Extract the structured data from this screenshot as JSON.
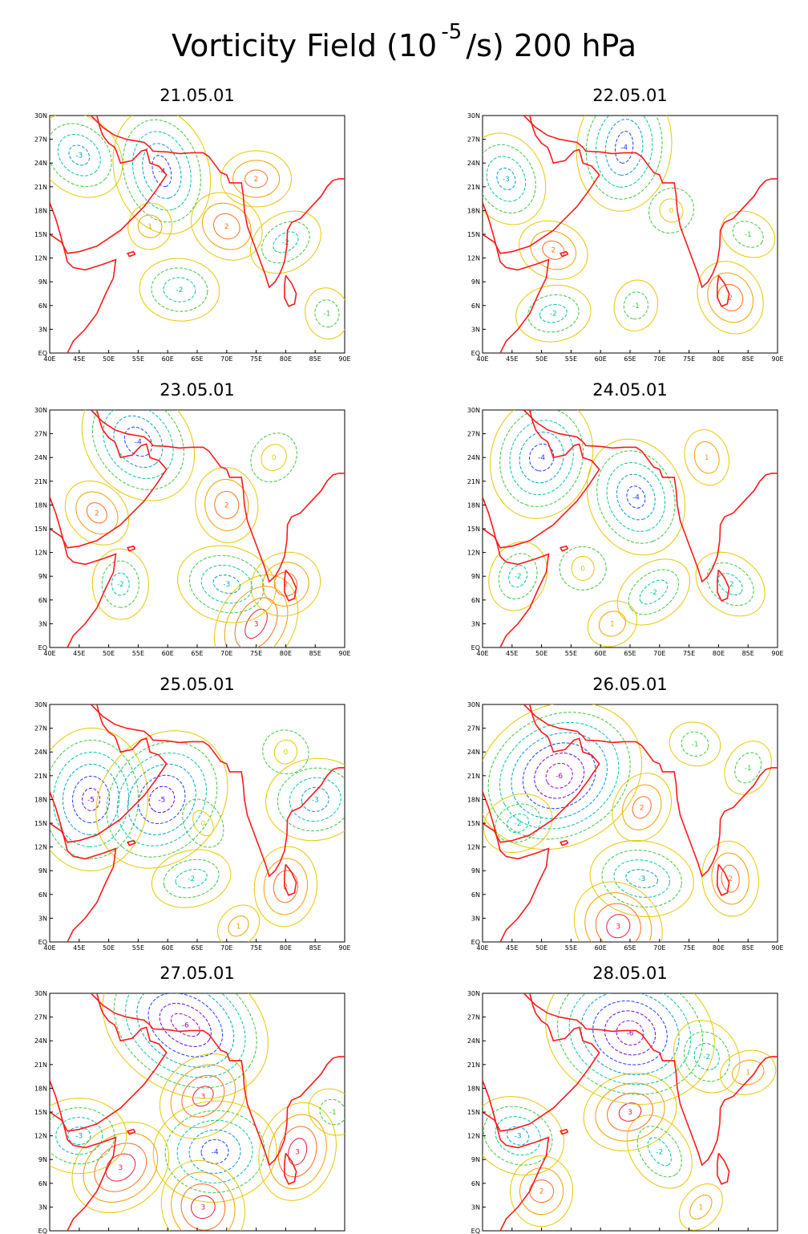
{
  "title": {
    "prefix": "Vorticity  Field (10",
    "exponent": "-5",
    "suffix": "/s) 200 hPa"
  },
  "axes": {
    "lon_range": [
      40,
      90
    ],
    "lat_range": [
      0,
      30
    ],
    "x_ticks": [
      {
        "value": 40,
        "label": "40E"
      },
      {
        "value": 45,
        "label": "45E"
      },
      {
        "value": 50,
        "label": "50E"
      },
      {
        "value": 55,
        "label": "55E"
      },
      {
        "value": 60,
        "label": "60E"
      },
      {
        "value": 65,
        "label": "65E"
      },
      {
        "value": 70,
        "label": "70E"
      },
      {
        "value": 75,
        "label": "75E"
      },
      {
        "value": 80,
        "label": "80E"
      },
      {
        "value": 85,
        "label": "85E"
      },
      {
        "value": 90,
        "label": "90E"
      }
    ],
    "y_ticks": [
      {
        "value": 0,
        "label": "EQ"
      },
      {
        "value": 3,
        "label": "3N"
      },
      {
        "value": 6,
        "label": "6N"
      },
      {
        "value": 9,
        "label": "9N"
      },
      {
        "value": 12,
        "label": "12N"
      },
      {
        "value": 15,
        "label": "15N"
      },
      {
        "value": 18,
        "label": "18N"
      },
      {
        "value": 21,
        "label": "21N"
      },
      {
        "value": 24,
        "label": "24N"
      },
      {
        "value": 27,
        "label": "27N"
      },
      {
        "value": 30,
        "label": "30N"
      }
    ]
  },
  "colors": {
    "coastline": "#ff1a1a",
    "levels": {
      "-6": "#a000c8",
      "-5": "#6e00dc",
      "-4": "#1e3cff",
      "-3": "#00a0c8",
      "-2": "#00c8a0",
      "-1": "#3cc83c",
      "0": "#e6c800",
      "1": "#f0a000",
      "2": "#ff6e1e",
      "3": "#e61e3c"
    }
  },
  "panels": [
    {
      "date": "21.05.01",
      "features": [
        {
          "lon": 75,
          "lat": 22,
          "level": 2
        },
        {
          "lon": 70,
          "lat": 16,
          "level": 2
        },
        {
          "lon": 59,
          "lat": 23,
          "level": -4
        },
        {
          "lon": 57,
          "lat": 16,
          "level": 1
        },
        {
          "lon": 80,
          "lat": 14,
          "level": -2
        },
        {
          "lon": 62,
          "lat": 8,
          "level": -2
        },
        {
          "lon": 45,
          "lat": 25,
          "level": -3
        },
        {
          "lon": 87,
          "lat": 5,
          "level": -1
        }
      ]
    },
    {
      "date": "22.05.01",
      "features": [
        {
          "lon": 52,
          "lat": 13,
          "level": 2
        },
        {
          "lon": 82,
          "lat": 7,
          "level": 2
        },
        {
          "lon": 64,
          "lat": 26,
          "level": -4
        },
        {
          "lon": 72,
          "lat": 18,
          "level": 0
        },
        {
          "lon": 52,
          "lat": 5,
          "level": -2
        },
        {
          "lon": 85,
          "lat": 15,
          "level": -1
        },
        {
          "lon": 44,
          "lat": 22,
          "level": -3
        },
        {
          "lon": 66,
          "lat": 6,
          "level": -1
        }
      ]
    },
    {
      "date": "23.05.01",
      "features": [
        {
          "lon": 48,
          "lat": 17,
          "level": 2
        },
        {
          "lon": 70,
          "lat": 18,
          "level": 2
        },
        {
          "lon": 75,
          "lat": 3,
          "level": 3
        },
        {
          "lon": 80,
          "lat": 8,
          "level": 2
        },
        {
          "lon": 70,
          "lat": 8,
          "level": -3
        },
        {
          "lon": 55,
          "lat": 26,
          "level": -4
        },
        {
          "lon": 52,
          "lat": 8,
          "level": -2
        },
        {
          "lon": 78,
          "lat": 24,
          "level": 0
        }
      ]
    },
    {
      "date": "24.05.01",
      "features": [
        {
          "lon": 66,
          "lat": 19,
          "level": -4
        },
        {
          "lon": 50,
          "lat": 24,
          "level": -4
        },
        {
          "lon": 69,
          "lat": 7,
          "level": -2
        },
        {
          "lon": 57,
          "lat": 10,
          "level": 0
        },
        {
          "lon": 82,
          "lat": 8,
          "level": -2
        },
        {
          "lon": 78,
          "lat": 24,
          "level": 1
        },
        {
          "lon": 46,
          "lat": 9,
          "level": -2
        },
        {
          "lon": 62,
          "lat": 3,
          "level": 1
        }
      ]
    },
    {
      "date": "25.05.01",
      "features": [
        {
          "lon": 47,
          "lat": 18,
          "level": -5
        },
        {
          "lon": 59,
          "lat": 18,
          "level": -5
        },
        {
          "lon": 64,
          "lat": 8,
          "level": -2
        },
        {
          "lon": 80,
          "lat": 24,
          "level": 0
        },
        {
          "lon": 66,
          "lat": 15,
          "level": 0
        },
        {
          "lon": 80,
          "lat": 7,
          "level": 2
        },
        {
          "lon": 72,
          "lat": 2,
          "level": 1
        },
        {
          "lon": 85,
          "lat": 18,
          "level": -3
        }
      ]
    },
    {
      "date": "26.05.01",
      "features": [
        {
          "lon": 67,
          "lat": 17,
          "level": 2
        },
        {
          "lon": 53,
          "lat": 21,
          "level": -6
        },
        {
          "lon": 67,
          "lat": 8,
          "level": -3
        },
        {
          "lon": 63,
          "lat": 2,
          "level": 3
        },
        {
          "lon": 82,
          "lat": 8,
          "level": 2
        },
        {
          "lon": 85,
          "lat": 22,
          "level": -1
        },
        {
          "lon": 46,
          "lat": 15,
          "level": -2
        },
        {
          "lon": 76,
          "lat": 25,
          "level": -1
        }
      ]
    },
    {
      "date": "27.05.01",
      "features": [
        {
          "lon": 66,
          "lat": 17,
          "level": 3
        },
        {
          "lon": 68,
          "lat": 10,
          "level": -4
        },
        {
          "lon": 63,
          "lat": 26,
          "level": -6
        },
        {
          "lon": 66,
          "lat": 3,
          "level": 3
        },
        {
          "lon": 82,
          "lat": 10,
          "level": 3
        },
        {
          "lon": 52,
          "lat": 8,
          "level": 3
        },
        {
          "lon": 45,
          "lat": 12,
          "level": -3
        },
        {
          "lon": 88,
          "lat": 15,
          "level": -1
        }
      ]
    },
    {
      "date": "28.05.01",
      "features": [
        {
          "lon": 65,
          "lat": 15,
          "level": 3
        },
        {
          "lon": 65,
          "lat": 25,
          "level": -6
        },
        {
          "lon": 70,
          "lat": 10,
          "level": -2
        },
        {
          "lon": 50,
          "lat": 5,
          "level": 2
        },
        {
          "lon": 77,
          "lat": 3,
          "level": 1
        },
        {
          "lon": 85,
          "lat": 20,
          "level": 1
        },
        {
          "lon": 46,
          "lat": 12,
          "level": -3
        },
        {
          "lon": 78,
          "lat": 22,
          "level": -2
        }
      ]
    }
  ],
  "coastlines": [
    [
      [
        47,
        30
      ],
      [
        49,
        28.5
      ],
      [
        51,
        27.5
      ],
      [
        53,
        27
      ],
      [
        56,
        26.6
      ],
      [
        57,
        26
      ],
      [
        57.5,
        25.5
      ],
      [
        60,
        25.4
      ],
      [
        62,
        25.2
      ],
      [
        64,
        25.3
      ],
      [
        66,
        25.3
      ],
      [
        67,
        24.8
      ],
      [
        68,
        23.8
      ],
      [
        69,
        22.8
      ],
      [
        70,
        22.5
      ],
      [
        70.5,
        21.5
      ],
      [
        72.5,
        21.5
      ],
      [
        72.8,
        20
      ],
      [
        73,
        18
      ],
      [
        73.5,
        16
      ],
      [
        74.5,
        14
      ],
      [
        75.5,
        12
      ],
      [
        76.5,
        10
      ],
      [
        77.2,
        8.3
      ],
      [
        78.2,
        9
      ],
      [
        79,
        10
      ],
      [
        79.8,
        11.5
      ],
      [
        80.2,
        13.5
      ],
      [
        80.3,
        15.5
      ],
      [
        81,
        16.5
      ],
      [
        82.5,
        17
      ],
      [
        84,
        18.2
      ],
      [
        86,
        19.8
      ],
      [
        87,
        21
      ],
      [
        88,
        21.8
      ],
      [
        89,
        22
      ],
      [
        90,
        22
      ]
    ],
    [
      [
        40,
        15
      ],
      [
        42,
        14
      ],
      [
        43,
        12.6
      ],
      [
        45,
        12.8
      ],
      [
        48,
        13.5
      ],
      [
        50,
        14.5
      ],
      [
        52,
        15.5
      ],
      [
        54,
        17
      ],
      [
        56,
        18.5
      ],
      [
        58,
        20.5
      ],
      [
        59.8,
        22.5
      ],
      [
        58.5,
        23.6
      ],
      [
        57,
        24
      ],
      [
        56.4,
        25.7
      ],
      [
        55.5,
        25.5
      ],
      [
        54,
        24.3
      ],
      [
        52,
        24
      ],
      [
        51.3,
        25.5
      ],
      [
        51,
        26
      ],
      [
        50,
        26.5
      ],
      [
        49,
        27.5
      ],
      [
        48.5,
        28.5
      ],
      [
        48,
        30
      ]
    ],
    [
      [
        43,
        0
      ],
      [
        44,
        1.5
      ],
      [
        46,
        3
      ],
      [
        48,
        5
      ],
      [
        49.5,
        7.5
      ],
      [
        50.8,
        9.5
      ],
      [
        51.2,
        11.8
      ],
      [
        49,
        11.2
      ],
      [
        46,
        10.5
      ],
      [
        44,
        10.8
      ],
      [
        43,
        11.5
      ],
      [
        42.5,
        13
      ],
      [
        41.8,
        15
      ],
      [
        41,
        17
      ],
      [
        40,
        19
      ]
    ],
    [
      [
        80,
        9.8
      ],
      [
        81,
        8.8
      ],
      [
        81.8,
        7.5
      ],
      [
        81.5,
        6.2
      ],
      [
        80.5,
        5.9
      ],
      [
        79.8,
        7
      ],
      [
        79.8,
        8.5
      ],
      [
        80,
        9.8
      ]
    ],
    [
      [
        54.5,
        12.5
      ],
      [
        53.5,
        12.2
      ],
      [
        53.2,
        12.6
      ],
      [
        54.2,
        12.8
      ],
      [
        54.5,
        12.5
      ]
    ]
  ]
}
